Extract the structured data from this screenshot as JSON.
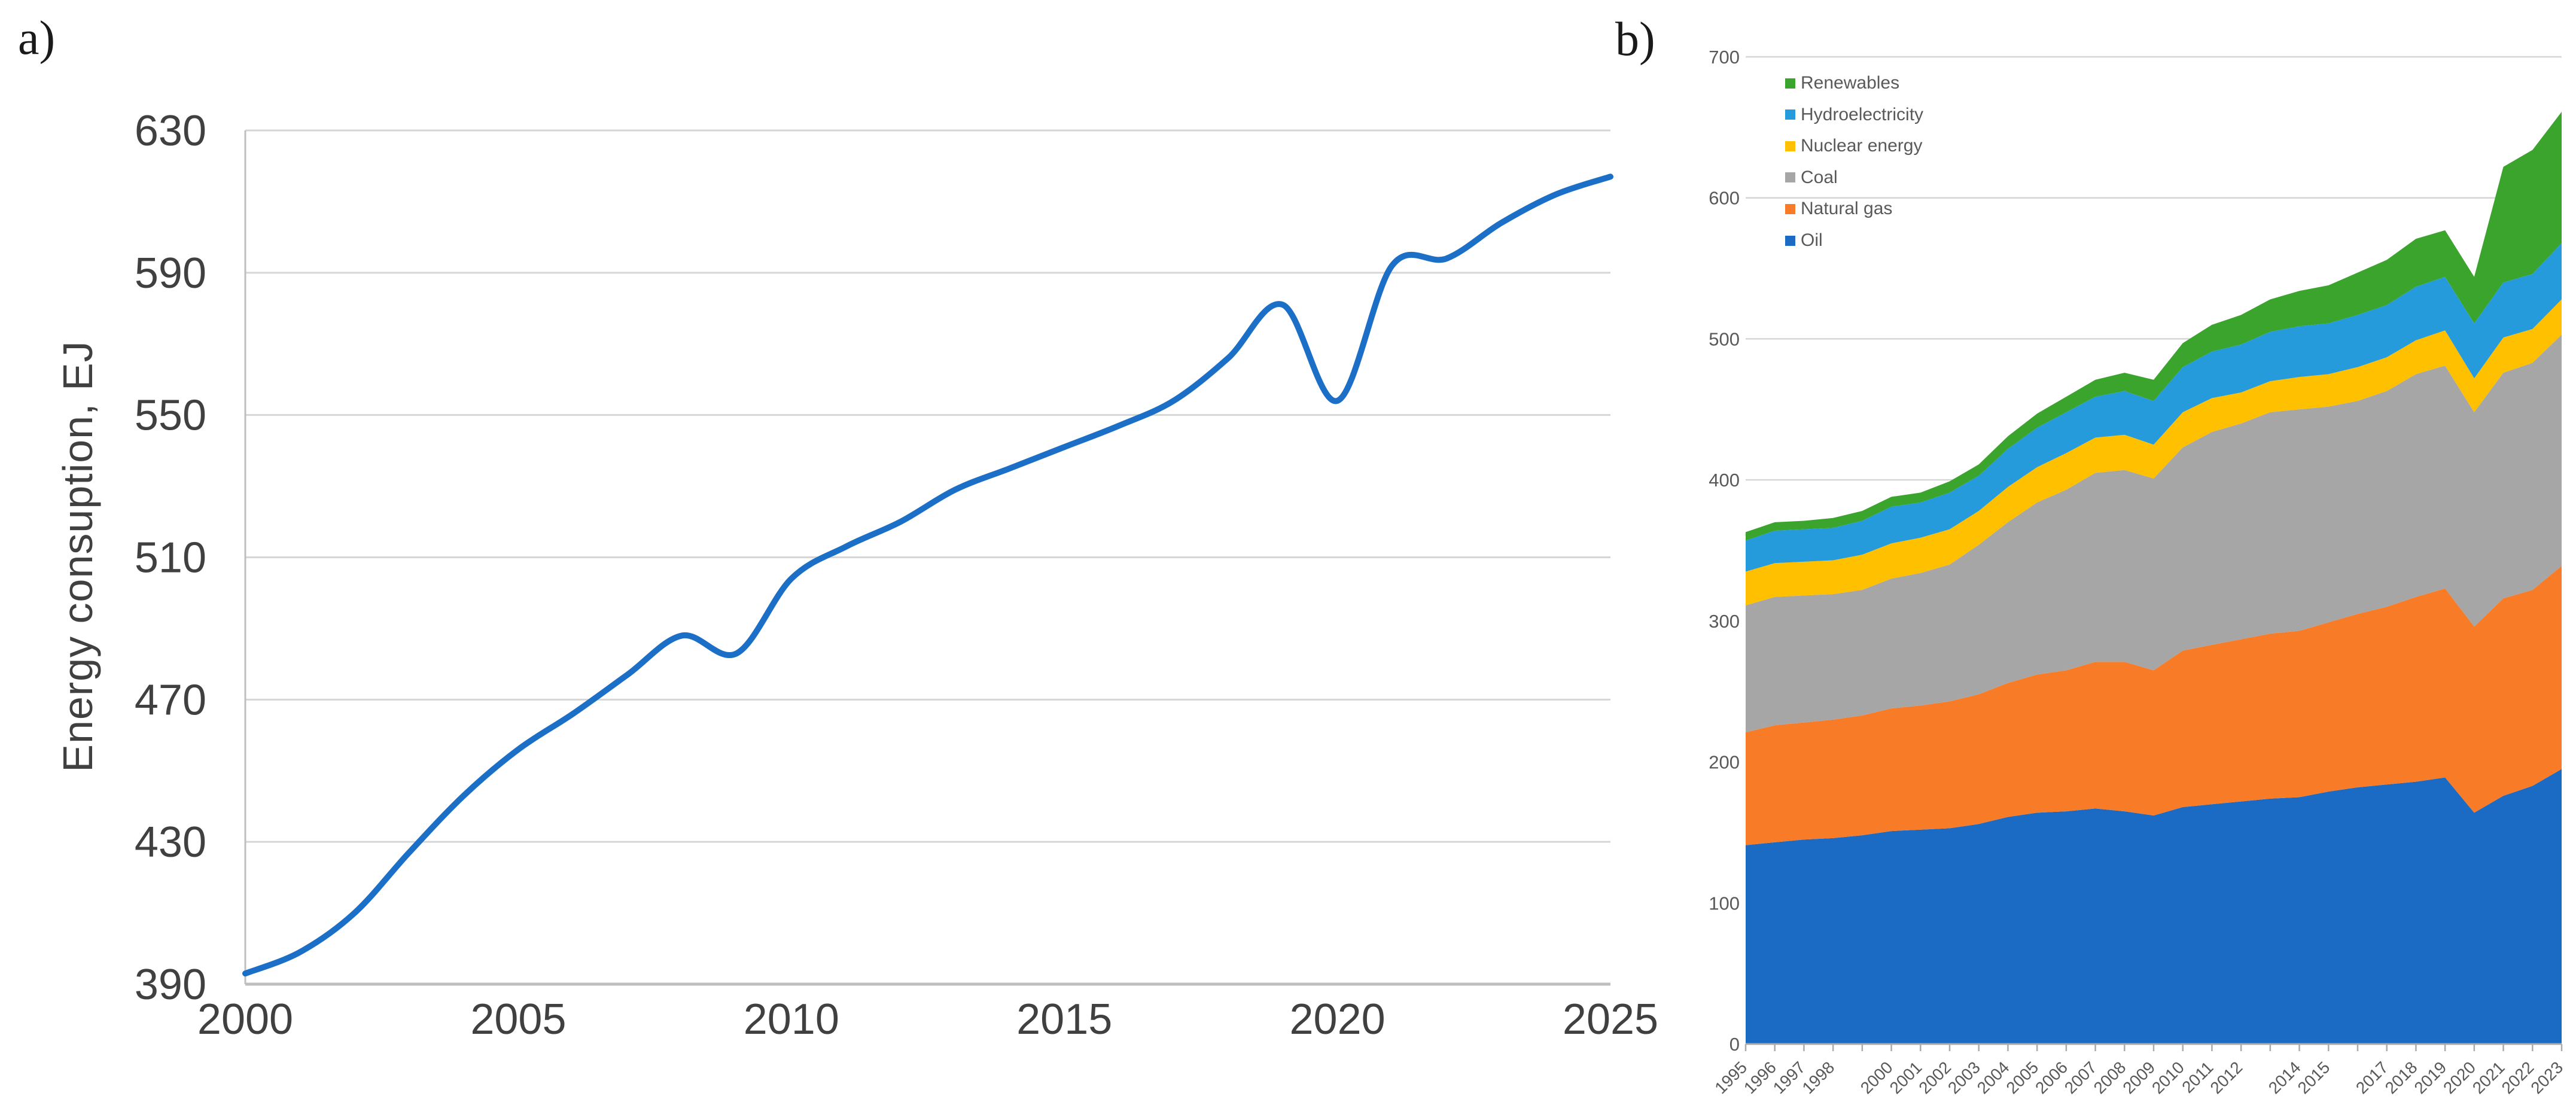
{
  "figure": {
    "label_a": "a)",
    "label_b": "b)"
  },
  "colors": {
    "line_a": "#1B6FC7",
    "gridline": "#D6D6D6",
    "axis_a": "#BFBFBF",
    "axis_b": "#ABABAB",
    "tick_text_a": "#404040",
    "tick_text_b": "#595959",
    "legend_text": "#595959"
  },
  "chart_data": [
    {
      "id": "energy-consumption-line",
      "panel_label": "a)",
      "type": "line",
      "title": "",
      "xlabel": "",
      "ylabel": "Energy consuption, EJ",
      "x": [
        2000,
        2001,
        2002,
        2003,
        2004,
        2005,
        2006,
        2007,
        2008,
        2009,
        2010,
        2011,
        2012,
        2013,
        2014,
        2015,
        2016,
        2017,
        2018,
        2019,
        2020,
        2021,
        2022,
        2023,
        2024,
        2025
      ],
      "values": [
        393,
        399,
        410,
        427,
        443,
        456,
        466,
        477,
        488,
        483,
        504,
        513,
        520,
        529,
        535,
        541,
        547,
        554,
        566,
        581,
        554,
        592,
        594,
        604,
        612,
        617
      ],
      "x_ticks": [
        2000,
        2005,
        2010,
        2015,
        2020,
        2025
      ],
      "y_ticks": [
        630,
        590,
        550,
        510,
        470,
        430,
        390
      ],
      "xlim": [
        2000,
        2025
      ],
      "ylim": [
        390,
        630
      ],
      "grid": "horizontal",
      "legend_position": "none",
      "line_smoothed": true
    },
    {
      "id": "energy-mix-stacked-area",
      "panel_label": "b)",
      "type": "area",
      "stacked": true,
      "title": "",
      "xlabel": "",
      "ylabel": "",
      "categories": [
        1995,
        1996,
        1997,
        1998,
        1999,
        2000,
        2001,
        2002,
        2003,
        2004,
        2005,
        2006,
        2007,
        2008,
        2009,
        2010,
        2011,
        2012,
        2013,
        2014,
        2015,
        2016,
        2017,
        2018,
        2019,
        2020,
        2021,
        2022,
        2023
      ],
      "x_tick_labels": [
        "1995",
        "1996",
        "1997",
        "1998",
        "2000",
        "2001",
        "2002",
        "2003",
        "2004",
        "2005",
        "2006",
        "2007",
        "2008",
        "2009",
        "2010",
        "2011",
        "2012",
        "2014",
        "2015",
        "2017",
        "2018",
        "2019",
        "2020",
        "2021",
        "2022",
        "2023"
      ],
      "y_ticks": [
        700,
        600,
        500,
        400,
        300,
        200,
        100,
        0
      ],
      "ylim": [
        0,
        700
      ],
      "grid": "horizontal",
      "legend_position": "top-left-inside",
      "legend_order": [
        "Renewables",
        "Hydroelectricity",
        "Nuclear energy",
        "Coal",
        "Natural gas",
        "Oil"
      ],
      "series": [
        {
          "name": "Oil",
          "color": "#1B6AC4",
          "values": [
            141,
            143,
            145,
            146,
            148,
            151,
            152,
            153,
            156,
            161,
            164,
            165,
            167,
            165,
            162,
            168,
            170,
            172,
            174,
            175,
            179,
            182,
            184,
            186,
            189,
            164,
            176,
            183,
            195
          ]
        },
        {
          "name": "Natural gas",
          "color": "#F87B28",
          "values": [
            80,
            83,
            83,
            84,
            85,
            87,
            88,
            90,
            92,
            95,
            98,
            100,
            104,
            106,
            103,
            111,
            113,
            115,
            117,
            118,
            120,
            123,
            126,
            131,
            134,
            132,
            140,
            139,
            144
          ]
        },
        {
          "name": "Coal",
          "color": "#A6A6A6",
          "values": [
            90,
            91,
            90,
            89,
            89,
            92,
            94,
            97,
            106,
            114,
            122,
            128,
            134,
            136,
            136,
            144,
            151,
            153,
            157,
            157,
            153,
            151,
            153,
            158,
            158,
            152,
            160,
            161,
            164
          ]
        },
        {
          "name": "Nuclear energy",
          "color": "#FFC000",
          "values": [
            24,
            24,
            24,
            24,
            25,
            25,
            25,
            25,
            24,
            25,
            25,
            26,
            25,
            25,
            24,
            25,
            24,
            22,
            22,
            23,
            23,
            24,
            24,
            24,
            25,
            24,
            25,
            24,
            25
          ]
        },
        {
          "name": "Hydroelectricity",
          "color": "#259BDB",
          "values": [
            22,
            23,
            23,
            23,
            24,
            26,
            25,
            26,
            25,
            27,
            28,
            29,
            29,
            31,
            31,
            32,
            33,
            34,
            35,
            36,
            36,
            37,
            37,
            38,
            38,
            39,
            39,
            39,
            40
          ]
        },
        {
          "name": "Renewables",
          "color": "#3BA42C",
          "values": [
            6,
            6,
            6,
            7,
            7,
            7,
            7,
            8,
            8,
            9,
            10,
            11,
            12,
            13,
            15,
            17,
            19,
            21,
            23,
            25,
            27,
            30,
            32,
            34,
            33,
            33,
            82,
            88,
            93
          ]
        }
      ]
    }
  ]
}
